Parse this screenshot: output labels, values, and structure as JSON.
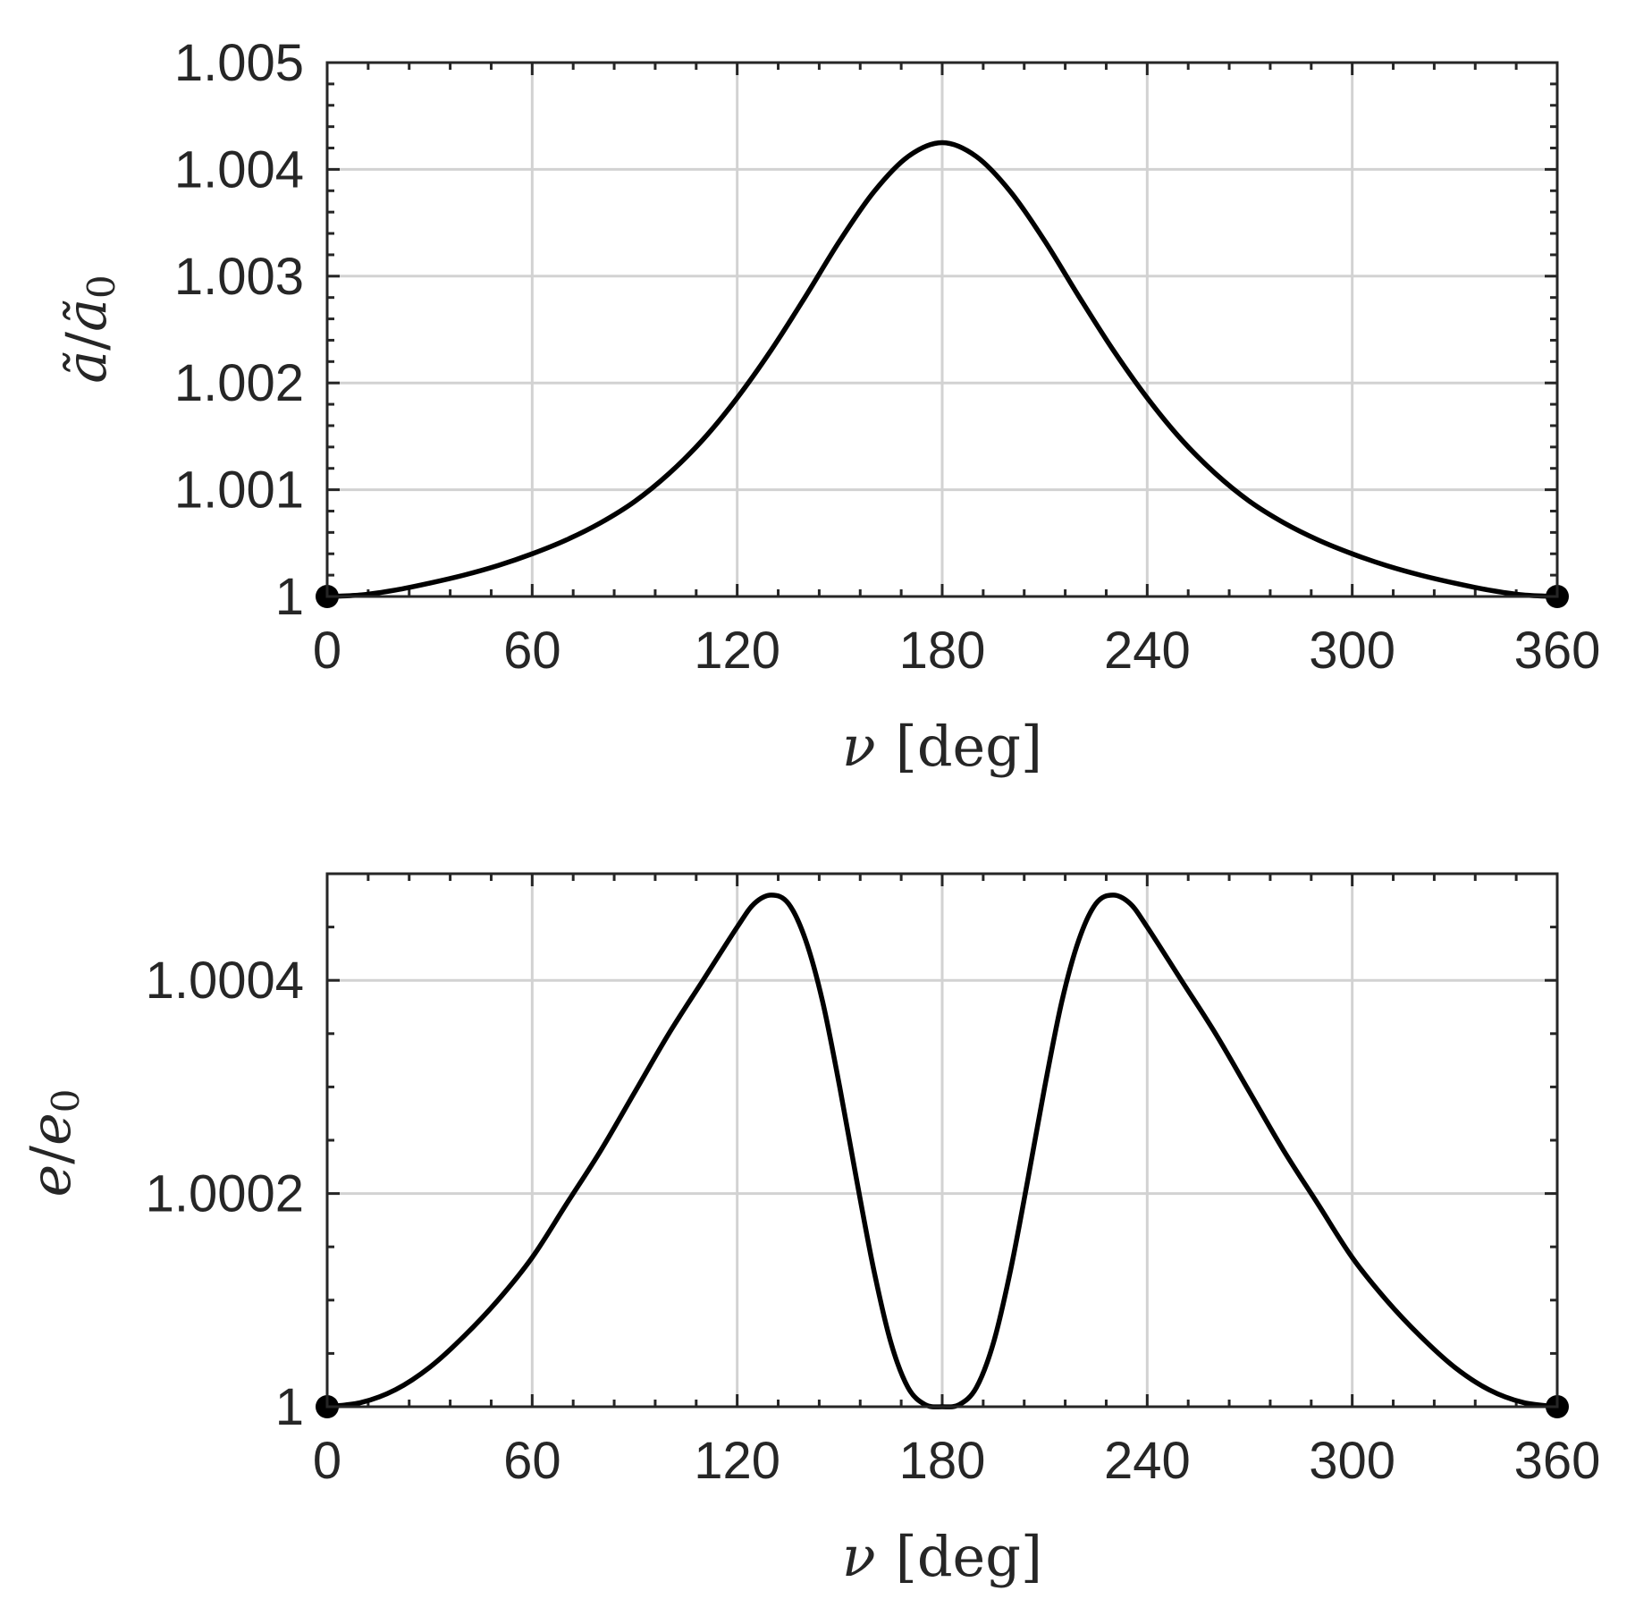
{
  "chart_data": [
    {
      "type": "line",
      "title": "",
      "xlabel_symbol": "ν",
      "xlabel_unit": "[deg]",
      "ylabel_symbol": "ã",
      "ylabel_sub_symbol": "ã",
      "ylabel_subscript": "0",
      "xlim": [
        0,
        360
      ],
      "ylim": [
        1,
        1.005
      ],
      "xticks": [
        0,
        60,
        120,
        180,
        240,
        300,
        360
      ],
      "xtick_labels": [
        "0",
        "60",
        "120",
        "180",
        "240",
        "300",
        "360"
      ],
      "yticks": [
        1,
        1.001,
        1.002,
        1.003,
        1.004,
        1.005
      ],
      "ytick_labels": [
        "1",
        "1.001",
        "1.002",
        "1.003",
        "1.004",
        "1.005"
      ],
      "grid": true,
      "series": [
        {
          "color": "#000000",
          "x": [
            0,
            10,
            20,
            30,
            40,
            50,
            60,
            70,
            80,
            90,
            100,
            110,
            120,
            130,
            140,
            150,
            160,
            170,
            180,
            190,
            200,
            210,
            220,
            230,
            240,
            250,
            260,
            270,
            280,
            290,
            300,
            310,
            320,
            330,
            340,
            350,
            360
          ],
          "y": [
            1.0,
            1.000015,
            1.00006,
            1.000125,
            1.0002,
            1.00029,
            1.0004,
            1.00053,
            1.00069,
            1.00089,
            1.00115,
            1.00147,
            1.00186,
            1.00231,
            1.00281,
            1.00333,
            1.00379,
            1.00412,
            1.00425,
            1.00412,
            1.00379,
            1.00333,
            1.00281,
            1.00231,
            1.00186,
            1.00147,
            1.00115,
            1.00089,
            1.00069,
            1.00053,
            1.0004,
            1.00029,
            1.0002,
            1.000125,
            1.00006,
            1.000015,
            1.0
          ]
        }
      ],
      "markers": [
        {
          "x": 0,
          "y": 1
        },
        {
          "x": 360,
          "y": 1
        }
      ]
    },
    {
      "type": "line",
      "title": "",
      "xlabel_symbol": "ν",
      "xlabel_unit": "[deg]",
      "ylabel_symbol": "e",
      "ylabel_sub_symbol": "e",
      "ylabel_subscript": "0",
      "xlim": [
        0,
        360
      ],
      "ylim": [
        1,
        1.0005
      ],
      "xticks": [
        0,
        60,
        120,
        180,
        240,
        300,
        360
      ],
      "xtick_labels": [
        "0",
        "60",
        "120",
        "180",
        "240",
        "300",
        "360"
      ],
      "yticks": [
        1,
        1.0002,
        1.0004
      ],
      "ytick_labels": [
        "1",
        "1.0002",
        "1.0004"
      ],
      "grid": true,
      "series": [
        {
          "color": "#000000",
          "x": [
            0,
            10,
            20,
            30,
            40,
            50,
            60,
            70,
            80,
            90,
            100,
            110,
            120,
            125,
            130,
            135,
            140,
            145,
            150,
            155,
            160,
            165,
            170,
            175,
            180,
            185,
            190,
            195,
            200,
            205,
            210,
            215,
            220,
            225,
            230,
            235,
            240,
            250,
            260,
            270,
            280,
            290,
            300,
            310,
            320,
            330,
            340,
            350,
            360
          ],
          "y": [
            1.0,
            1.000004,
            1.000016,
            1.000037,
            1.000066,
            1.0001,
            1.00014,
            1.00019,
            1.00024,
            1.000295,
            1.00035,
            1.0004,
            1.00045,
            1.000472,
            1.00048,
            1.000472,
            1.000438,
            1.00038,
            1.0003,
            1.000212,
            1.000128,
            1.00006,
            1.000018,
            1.000002,
            1.0,
            1.000002,
            1.000018,
            1.00006,
            1.000128,
            1.000212,
            1.0003,
            1.00038,
            1.000438,
            1.000472,
            1.00048,
            1.000472,
            1.00045,
            1.0004,
            1.00035,
            1.000295,
            1.00024,
            1.00019,
            1.00014,
            1.0001,
            1.000066,
            1.000037,
            1.000016,
            1.000004,
            1.0
          ]
        }
      ],
      "markers": [
        {
          "x": 0,
          "y": 1
        },
        {
          "x": 360,
          "y": 1
        }
      ]
    }
  ]
}
